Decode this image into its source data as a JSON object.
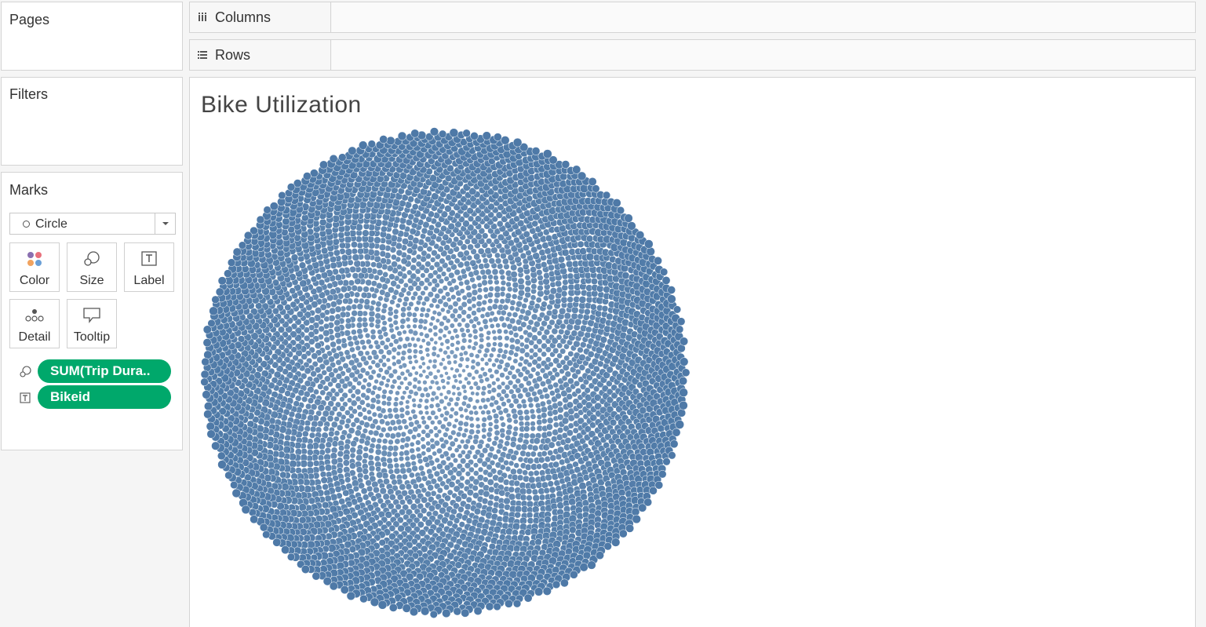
{
  "pages_card": {
    "title": "Pages"
  },
  "filters_card": {
    "title": "Filters"
  },
  "marks_card": {
    "title": "Marks",
    "mark_type": "Circle",
    "buttons": {
      "color": "Color",
      "size": "Size",
      "label": "Label",
      "detail": "Detail",
      "tooltip": "Tooltip"
    },
    "pills": [
      {
        "icon": "size-icon",
        "label": "SUM(Trip Dura.."
      },
      {
        "icon": "text-label-icon",
        "label": "Bikeid"
      }
    ],
    "pill_color": "#00a86b"
  },
  "shelves": {
    "columns": {
      "label": "Columns",
      "icon": "columns-icon"
    },
    "rows": {
      "label": "Rows",
      "icon": "rows-icon"
    }
  },
  "view": {
    "title": "Bike Utilization"
  },
  "chart_data": {
    "type": "scatter",
    "subtype": "packed-bubble",
    "title": "Bike Utilization",
    "mark": "circle",
    "size_field": "SUM(Trip Dura..",
    "label_field": "Bikeid",
    "mark_color": "#4e79a7",
    "legend": "none",
    "grid": false
  }
}
